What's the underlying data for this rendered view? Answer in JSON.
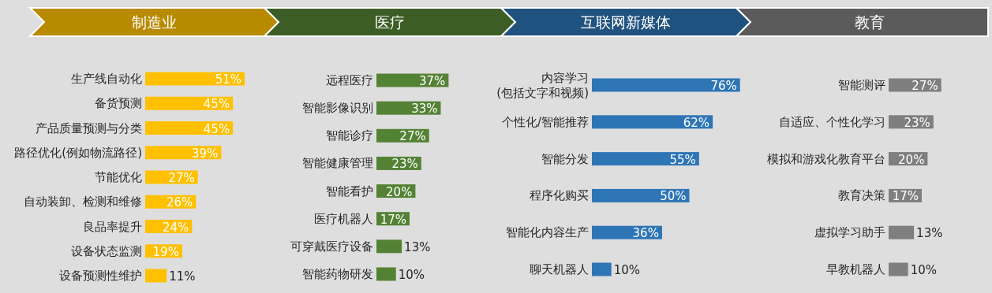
{
  "chart_data": [
    {
      "type": "bar",
      "orientation": "horizontal",
      "title": "制造业",
      "color": "#ffc000",
      "categories": [
        "生产线自动化",
        "备货预测",
        "产品质量预测与分类",
        "路径优化(例如物流路径)",
        "节能优化",
        "自动装卸、检测和维修",
        "良品率提升",
        "设备状态监测",
        "设备预测性维护"
      ],
      "values": [
        51,
        45,
        45,
        39,
        27,
        26,
        24,
        19,
        11
      ],
      "value_labels": [
        "51%",
        "45%",
        "45%",
        "39%",
        "27%",
        "26%",
        "24%",
        "19%",
        "11%"
      ]
    },
    {
      "type": "bar",
      "orientation": "horizontal",
      "title": "医疗",
      "color": "#548235",
      "categories": [
        "远程医疗",
        "智能影像识别",
        "智能诊疗",
        "智能健康管理",
        "智能看护",
        "医疗机器人",
        "可穿戴医疗设备",
        "智能药物研发"
      ],
      "values": [
        37,
        33,
        27,
        23,
        20,
        17,
        13,
        10
      ],
      "value_labels": [
        "37%",
        "33%",
        "27%",
        "23%",
        "20%",
        "17%",
        "13%",
        "10%"
      ]
    },
    {
      "type": "bar",
      "orientation": "horizontal",
      "title": "互联网新媒体",
      "color": "#2e75b6",
      "categories": [
        "内容学习\n(包括文字和视频)",
        "个性化/智能推荐",
        "智能分发",
        "程序化购买",
        "智能化内容生产",
        "聊天机器人"
      ],
      "values": [
        76,
        62,
        55,
        50,
        36,
        10
      ],
      "value_labels": [
        "76%",
        "62%",
        "55%",
        "50%",
        "36%",
        "10%"
      ]
    },
    {
      "type": "bar",
      "orientation": "horizontal",
      "title": "教育",
      "color": "#7f7f7f",
      "categories": [
        "智能测评",
        "自适应、个性化学习",
        "模拟和游戏化教育平台",
        "教育决策",
        "虚拟学习助手",
        "早教机器人"
      ],
      "values": [
        27,
        23,
        20,
        17,
        13,
        10
      ],
      "value_labels": [
        "27%",
        "23%",
        "20%",
        "17%",
        "13%",
        "10%"
      ]
    }
  ]
}
